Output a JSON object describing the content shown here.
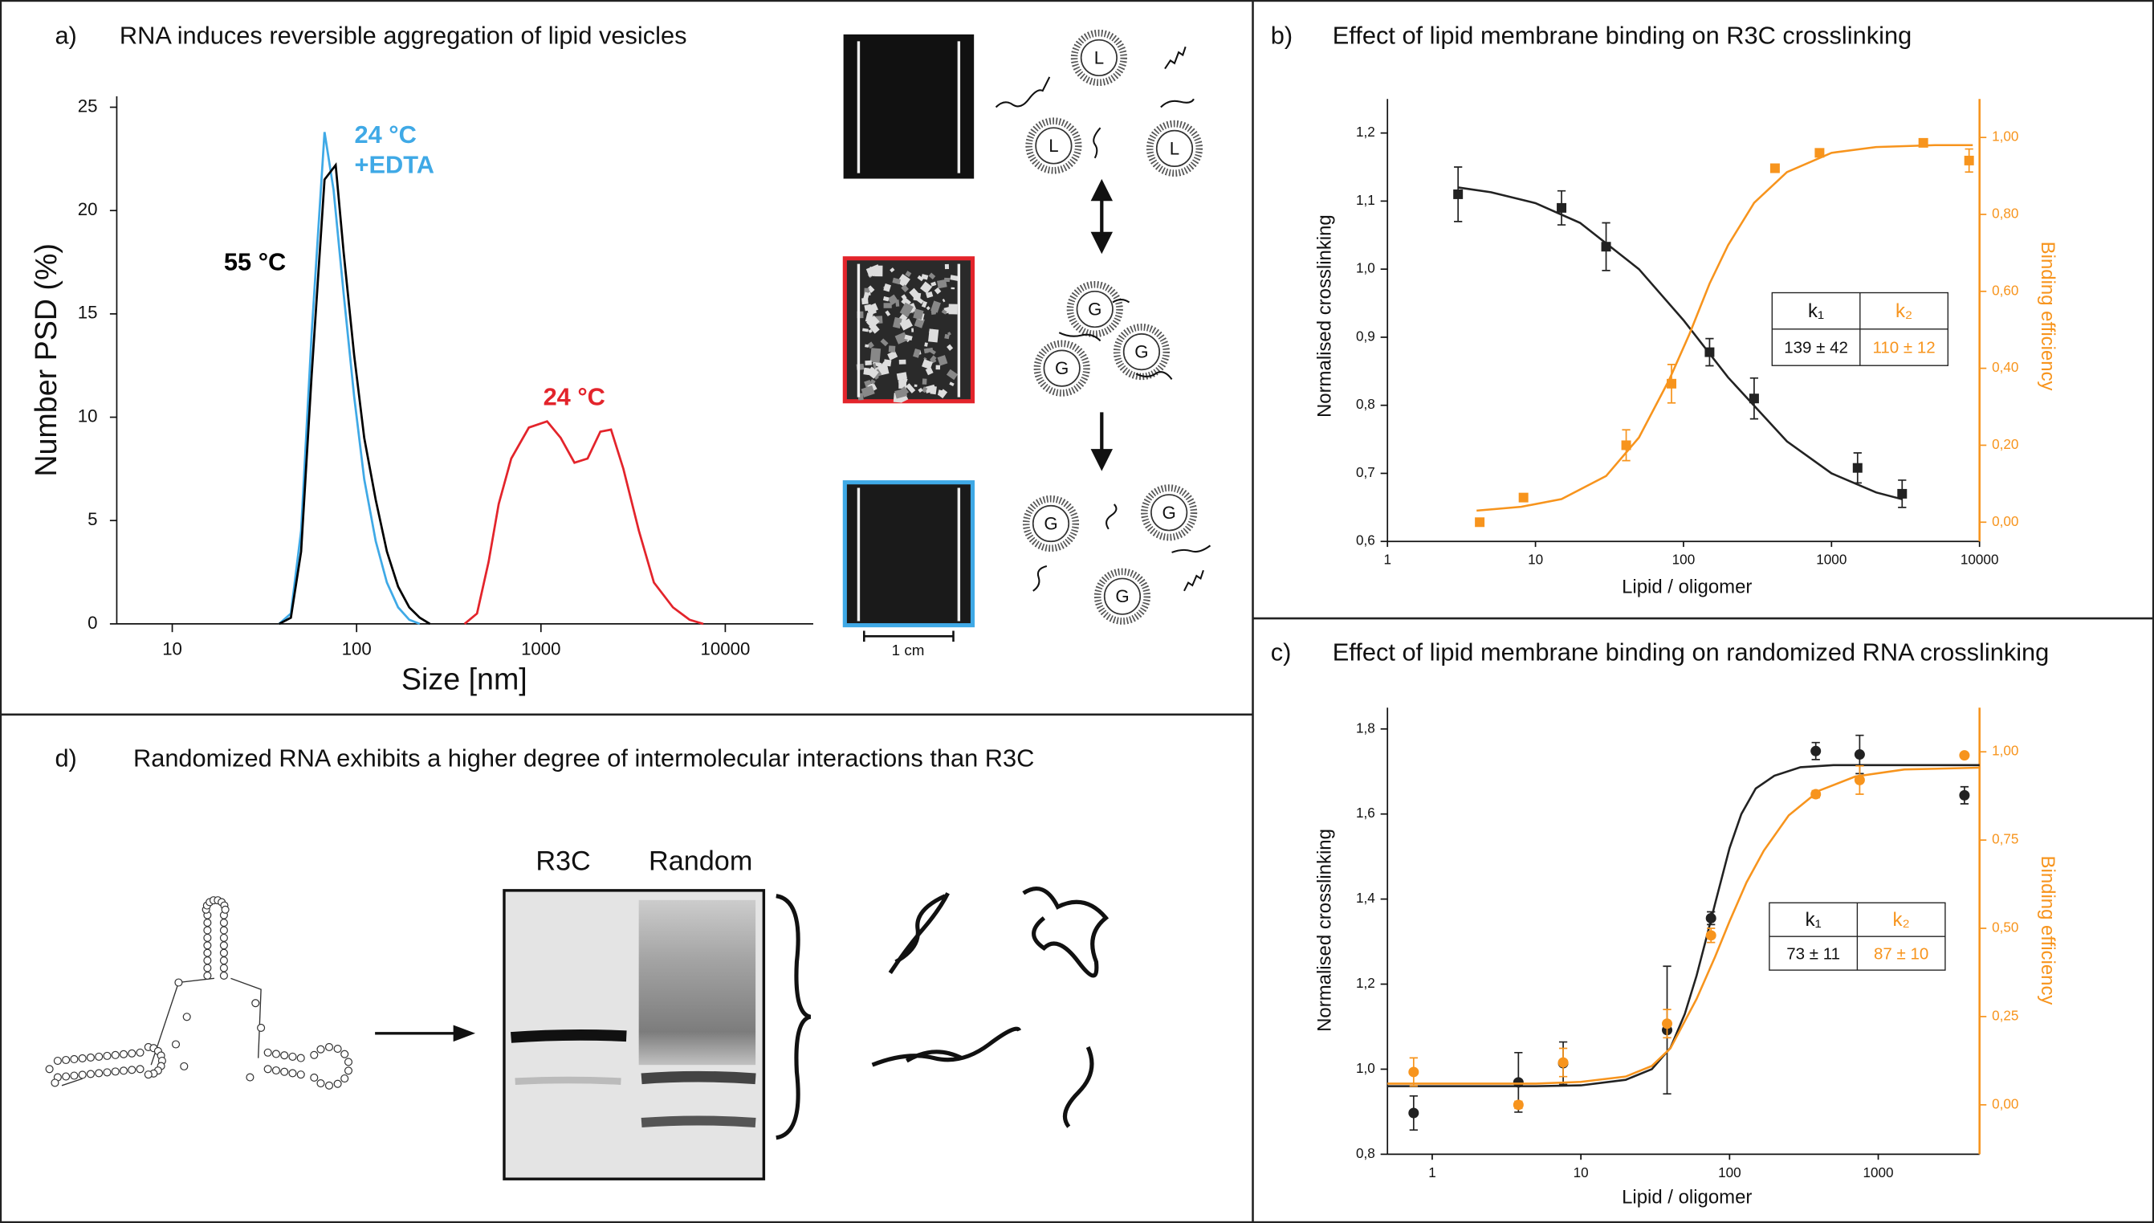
{
  "chart_data": [
    {
      "type": "line",
      "label": "a)",
      "title": "RNA induces reversible aggregation of lipid vesicles",
      "x_label": "Size [nm]",
      "y_label": "Number PSD (%)",
      "xscale": "log",
      "xlim": [
        5,
        30000
      ],
      "xticks": [
        10,
        100,
        1000,
        10000
      ],
      "ylim": [
        0,
        25
      ],
      "yticks": [
        0,
        5,
        10,
        15,
        20,
        25
      ],
      "series": [
        {
          "name": "24 °C +EDTA",
          "color": "#3fa9e6",
          "x": [
            38,
            44,
            50,
            57,
            67,
            75,
            85,
            97,
            110,
            127,
            146,
            168,
            193,
            220
          ],
          "values": [
            0,
            0.5,
            4.5,
            14,
            23.8,
            21,
            16,
            11,
            7,
            4,
            2,
            0.8,
            0.2,
            0
          ]
        },
        {
          "name": "55 °C",
          "color": "#000000",
          "x": [
            38,
            44,
            50,
            57,
            67,
            77,
            85,
            97,
            110,
            127,
            146,
            168,
            193,
            220,
            250
          ],
          "values": [
            0,
            0.3,
            3.5,
            12,
            21.5,
            22.2,
            18,
            13,
            9,
            6,
            3.5,
            1.8,
            0.8,
            0.3,
            0
          ]
        },
        {
          "name": "24 °C",
          "color": "#e3242b",
          "x": [
            385,
            450,
            520,
            590,
            690,
            860,
            1080,
            1280,
            1520,
            1790,
            2100,
            2400,
            2800,
            3400,
            4100,
            5200,
            6400,
            7600
          ],
          "values": [
            0,
            0.5,
            3,
            5.8,
            8,
            9.5,
            9.8,
            9,
            7.8,
            8,
            9.3,
            9.4,
            7.5,
            4.5,
            2,
            0.8,
            0.2,
            0
          ]
        }
      ]
    },
    {
      "type": "scatter",
      "label": "b)",
      "title": "Effect of lipid membrane binding on R3C crosslinking",
      "x_label": "Lipid / oligomer",
      "y_label": "Normalised crosslinking",
      "y2_label": "Binding efficiency",
      "xscale": "log",
      "xlim": [
        1,
        10000
      ],
      "xticks": [
        1,
        10,
        100,
        1000,
        10000
      ],
      "ylim": [
        0.6,
        1.25
      ],
      "yticks": [
        {
          "value": 0.6,
          "label": "0,6"
        },
        {
          "value": 0.7,
          "label": "0,7"
        },
        {
          "value": 0.8,
          "label": "0,8"
        },
        {
          "value": 0.9,
          "label": "0,9"
        },
        {
          "value": 1.0,
          "label": "1,0"
        },
        {
          "value": 1.1,
          "label": "1,1"
        },
        {
          "value": 1.2,
          "label": "1,2"
        }
      ],
      "y2lim": [
        -0.05,
        1.1
      ],
      "y2ticks": [
        {
          "value": 0,
          "label": "0,00"
        },
        {
          "value": 0.2,
          "label": "0,20"
        },
        {
          "value": 0.4,
          "label": "0,40"
        },
        {
          "value": 0.6,
          "label": "0,60"
        },
        {
          "value": 0.8,
          "label": "0,80"
        },
        {
          "value": 1.0,
          "label": "1,00"
        }
      ],
      "series": [
        {
          "color": "#222222",
          "marker": "square",
          "x": [
            3,
            15,
            30,
            150,
            300,
            1500,
            3000
          ],
          "values": [
            1.11,
            1.09,
            1.033,
            0.878,
            0.81,
            0.708,
            0.67
          ],
          "errors": [
            0.04,
            0.025,
            0.035,
            0.02,
            0.03,
            0.022,
            0.02
          ]
        },
        {
          "color": "#222222",
          "style": "line",
          "x": [
            3,
            5,
            10,
            20,
            50,
            100,
            200,
            500,
            1000,
            2000,
            3000
          ],
          "values": [
            1.12,
            1.113,
            1.097,
            1.068,
            1.0,
            0.925,
            0.841,
            0.747,
            0.7,
            0.672,
            0.662
          ]
        },
        {
          "color": "#f7941d",
          "marker": "square",
          "axis": "y2",
          "x": [
            4.2,
            8.3,
            41,
            83,
            415,
            830,
            4170,
            8500
          ],
          "values": [
            0,
            0.064,
            0.2,
            0.36,
            0.92,
            0.96,
            0.986,
            0.94
          ],
          "errors": [
            0,
            0.01,
            0.04,
            0.05,
            0.01,
            0.01,
            0.005,
            0.03
          ]
        },
        {
          "color": "#f7941d",
          "style": "line",
          "axis": "y2",
          "x": [
            4,
            8,
            15,
            30,
            50,
            80,
            110,
            150,
            200,
            300,
            500,
            1000,
            2000,
            5000,
            9000
          ],
          "values": [
            0.03,
            0.04,
            0.06,
            0.12,
            0.22,
            0.37,
            0.49,
            0.62,
            0.72,
            0.83,
            0.91,
            0.96,
            0.975,
            0.98,
            0.98
          ]
        }
      ],
      "table": {
        "header": [
          "k₁",
          "k₂"
        ],
        "rows": [
          [
            "139 ± 42",
            "110 ± 12"
          ]
        ]
      }
    },
    {
      "type": "scatter",
      "label": "c)",
      "title": "Effect of lipid membrane binding on randomized RNA crosslinking",
      "x_label": "Lipid / oligomer",
      "y_label": "Normalised crosslinking",
      "y2_label": "Binding efficiency",
      "xscale": "log",
      "xlim": [
        0.5,
        4800
      ],
      "xticks": [
        1,
        10,
        100,
        1000
      ],
      "ylim": [
        0.8,
        1.85
      ],
      "yticks": [
        {
          "value": 0.8,
          "label": "0,8"
        },
        {
          "value": 1.0,
          "label": "1,0"
        },
        {
          "value": 1.2,
          "label": "1,2"
        },
        {
          "value": 1.4,
          "label": "1,4"
        },
        {
          "value": 1.6,
          "label": "1,6"
        },
        {
          "value": 1.8,
          "label": "1,8"
        }
      ],
      "y2lim": [
        -0.14,
        1.125
      ],
      "y2ticks": [
        {
          "value": 0,
          "label": "0,00"
        },
        {
          "value": 0.25,
          "label": "0,25"
        },
        {
          "value": 0.5,
          "label": "0,50"
        },
        {
          "value": 0.75,
          "label": "0,75"
        },
        {
          "value": 1.0,
          "label": "1,00"
        }
      ],
      "series": [
        {
          "color": "#222222",
          "marker": "circle",
          "x": [
            0.75,
            3.8,
            7.6,
            38,
            75,
            380,
            750,
            3800
          ],
          "values": [
            0.897,
            0.969,
            1.014,
            1.092,
            1.355,
            1.748,
            1.74,
            1.644
          ],
          "errors": [
            0.04,
            0.07,
            0.05,
            0.15,
            0.015,
            0.02,
            0.045,
            0.02
          ]
        },
        {
          "color": "#222222",
          "style": "line",
          "x": [
            0.5,
            5,
            10,
            20,
            30,
            40,
            50,
            60,
            70,
            80,
            100,
            120,
            150,
            200,
            300,
            500,
            1000,
            4800
          ],
          "values": [
            0.96,
            0.96,
            0.962,
            0.975,
            1.0,
            1.05,
            1.13,
            1.22,
            1.31,
            1.39,
            1.52,
            1.6,
            1.66,
            1.69,
            1.71,
            1.715,
            1.715,
            1.715
          ]
        },
        {
          "color": "#f7941d",
          "marker": "circle",
          "axis": "y2",
          "x": [
            0.75,
            3.8,
            7.6,
            38,
            75,
            380,
            750,
            3800
          ],
          "values": [
            0.093,
            0,
            0.12,
            0.23,
            0.48,
            0.88,
            0.92,
            0.99
          ],
          "errors": [
            0.04,
            0.01,
            0.04,
            0.04,
            0.02,
            0.01,
            0.04,
            0.005
          ]
        },
        {
          "color": "#f7941d",
          "style": "line",
          "axis": "y2",
          "x": [
            0.5,
            5,
            10,
            20,
            30,
            40,
            60,
            80,
            100,
            130,
            170,
            250,
            400,
            700,
            1500,
            4800
          ],
          "values": [
            0.06,
            0.06,
            0.065,
            0.08,
            0.11,
            0.16,
            0.3,
            0.42,
            0.52,
            0.63,
            0.72,
            0.82,
            0.89,
            0.93,
            0.95,
            0.955
          ]
        }
      ],
      "table": {
        "header": [
          "k₁",
          "k₂"
        ],
        "rows": [
          [
            "73 ± 11",
            "87 ± 10"
          ]
        ]
      }
    }
  ],
  "panel_a_figure": {
    "scale_bar": "1 cm",
    "vesicle_labels": [
      "L",
      "L",
      "L",
      "G",
      "G",
      "G",
      "G",
      "G",
      "G"
    ]
  },
  "panel_d": {
    "label": "d)",
    "title": "Randomized RNA exhibits a higher degree of intermolecular interactions than R3C",
    "gel_lanes": [
      "R3C",
      "Random"
    ]
  }
}
